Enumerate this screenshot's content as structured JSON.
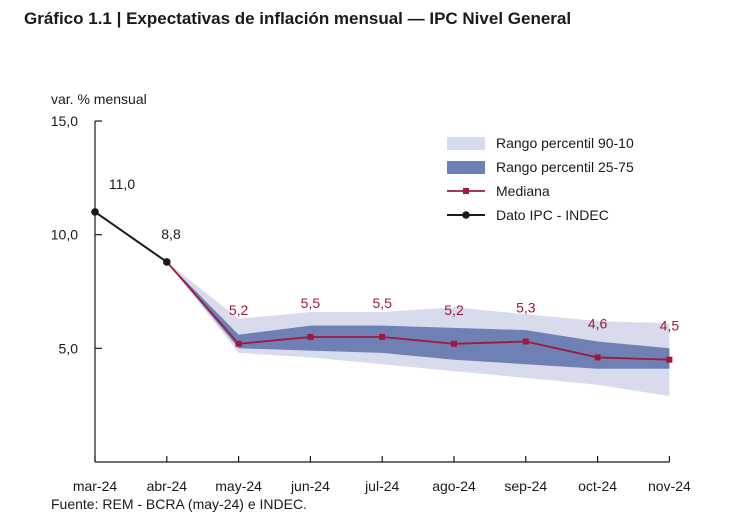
{
  "title": "Gráfico 1.1 | Expectativas de inflación mensual — IPC Nivel General",
  "source": "Fuente: REM - BCRA (may-24) e INDEC.",
  "colors": {
    "band_90_10": "#d7dbec",
    "band_25_75": "#6f80b5",
    "mediana": "#a1183e",
    "ipc": "#1a1a1a",
    "axis": "#1a1a1a"
  },
  "chart_data": {
    "type": "line",
    "ylabel": "var. % mensual",
    "ylim": [
      0,
      15
    ],
    "yticks": [
      5,
      10,
      15
    ],
    "ytick_labels": [
      "5,0",
      "10,0",
      "15,0"
    ],
    "categories": [
      "mar-24",
      "abr-24",
      "may-24",
      "jun-24",
      "jul-24",
      "ago-24",
      "sep-24",
      "oct-24",
      "nov-24"
    ],
    "legend": [
      "Rango percentil 90-10",
      "Rango percentil 25-75",
      "Mediana",
      "Dato IPC - INDEC"
    ],
    "legend_position": "top-right",
    "ipc": {
      "name": "Dato IPC - INDEC",
      "values": [
        11.0,
        8.8
      ],
      "labels": [
        "11,0",
        "8,8"
      ]
    },
    "mediana": {
      "name": "Mediana",
      "values": [
        null,
        8.8,
        5.2,
        5.5,
        5.5,
        5.2,
        5.3,
        4.6,
        4.5
      ],
      "labels": [
        "",
        "",
        "5,2",
        "5,5",
        "5,5",
        "5,2",
        "5,3",
        "4,6",
        "4,5"
      ]
    },
    "p90_10": {
      "name": "Rango percentil 90-10",
      "upper": [
        null,
        8.8,
        6.3,
        6.6,
        6.6,
        6.8,
        6.5,
        6.2,
        6.1
      ],
      "lower": [
        null,
        8.8,
        4.8,
        4.6,
        4.3,
        4.0,
        3.7,
        3.4,
        2.9
      ]
    },
    "p25_75": {
      "name": "Rango percentil 25-75",
      "upper": [
        null,
        8.8,
        5.6,
        6.0,
        6.0,
        5.9,
        5.8,
        5.3,
        5.0
      ],
      "lower": [
        null,
        8.8,
        5.0,
        4.9,
        4.8,
        4.5,
        4.3,
        4.1,
        4.1
      ]
    }
  }
}
